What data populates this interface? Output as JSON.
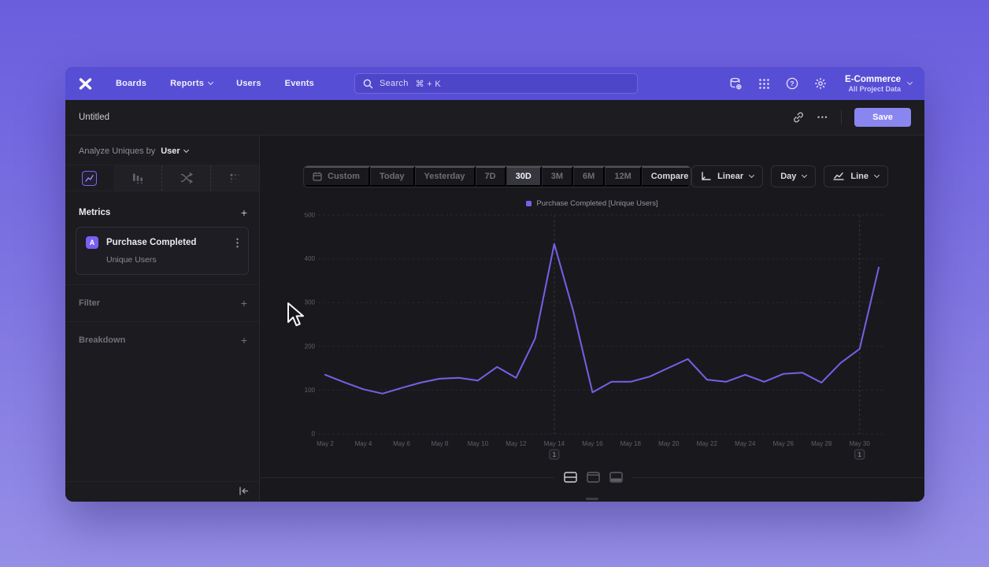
{
  "colors": {
    "accent_purple": "#7a5ff2",
    "nav_purple": "#574ed6",
    "line_color": "#7660e8",
    "save_button": "#8986f0",
    "window_bg": "#1a1a1f"
  },
  "icons": [
    "mixpanel-logo",
    "search-icon",
    "data-management-icon",
    "apps-grid-icon",
    "help-icon",
    "settings-icon",
    "chevron-down-icon",
    "link-icon",
    "more-icon",
    "insights-tab-icon",
    "funnels-tab-icon",
    "flows-tab-icon",
    "retention-tab-icon",
    "kebab-icon",
    "plus-icon",
    "calendar-icon",
    "axis-scale-icon",
    "line-chart-icon",
    "collapse-sidebar-icon",
    "layout-split-icon",
    "layout-chart-icon",
    "layout-table-icon",
    "cursor-pointer"
  ],
  "nav": {
    "items": [
      {
        "label": "Boards"
      },
      {
        "label": "Reports"
      },
      {
        "label": "Users"
      },
      {
        "label": "Events"
      }
    ],
    "search": {
      "label": "Search",
      "shortcut": "⌘ + K"
    },
    "project": {
      "name": "E-Commerce",
      "subtitle": "All Project Data"
    }
  },
  "header": {
    "title": "Untitled",
    "more_label": "•••",
    "save_label": "Save"
  },
  "sidebar": {
    "analyze_prefix": "Analyze Uniques by",
    "analyze_value": "User",
    "tabs": [
      {
        "name": "insights",
        "selected": true
      },
      {
        "name": "funnels",
        "selected": false
      },
      {
        "name": "flows",
        "selected": false
      },
      {
        "name": "retention",
        "selected": false
      }
    ],
    "metrics": {
      "title": "Metrics",
      "add_label": "+",
      "items": [
        {
          "badge": "A",
          "name": "Purchase Completed",
          "subtitle": "Unique Users"
        }
      ]
    },
    "filter": {
      "title": "Filter",
      "add_label": "+"
    },
    "breakdown": {
      "title": "Breakdown",
      "add_label": "+"
    }
  },
  "toolbar": {
    "ranges": [
      "Custom",
      "Today",
      "Yesterday",
      "7D",
      "30D",
      "3M",
      "6M",
      "12M"
    ],
    "selected_range": "30D",
    "compare_label": "Compare",
    "scale_label": "Linear",
    "interval_label": "Day",
    "chart_type_label": "Line"
  },
  "chart_data": {
    "type": "line",
    "legend": [
      "Purchase Completed [Unique Users]"
    ],
    "legend_position": "top",
    "x": [
      "May 2",
      "May 3",
      "May 4",
      "May 5",
      "May 6",
      "May 7",
      "May 8",
      "May 9",
      "May 10",
      "May 11",
      "May 12",
      "May 13",
      "May 14",
      "May 15",
      "May 16",
      "May 17",
      "May 18",
      "May 19",
      "May 20",
      "May 21",
      "May 22",
      "May 23",
      "May 24",
      "May 25",
      "May 26",
      "May 27",
      "May 28",
      "May 29",
      "May 30",
      "May 31"
    ],
    "x_tick_every": 2,
    "series": [
      {
        "name": "Purchase Completed [Unique Users]",
        "color": "#7660e8",
        "values": [
          135,
          118,
          102,
          92,
          105,
          117,
          126,
          128,
          122,
          153,
          128,
          218,
          434,
          280,
          95,
          119,
          119,
          131,
          151,
          171,
          124,
          119,
          135,
          119,
          137,
          140,
          117,
          162,
          194,
          380
        ]
      }
    ],
    "ylim": [
      0,
      500
    ],
    "yticks": [
      0,
      100,
      200,
      300,
      400,
      500
    ],
    "grid": "dashed",
    "annotations": [
      {
        "x_index": 12,
        "x": "May 14",
        "label": "1"
      },
      {
        "x_index": 28,
        "x": "May 30",
        "label": "1"
      }
    ]
  }
}
